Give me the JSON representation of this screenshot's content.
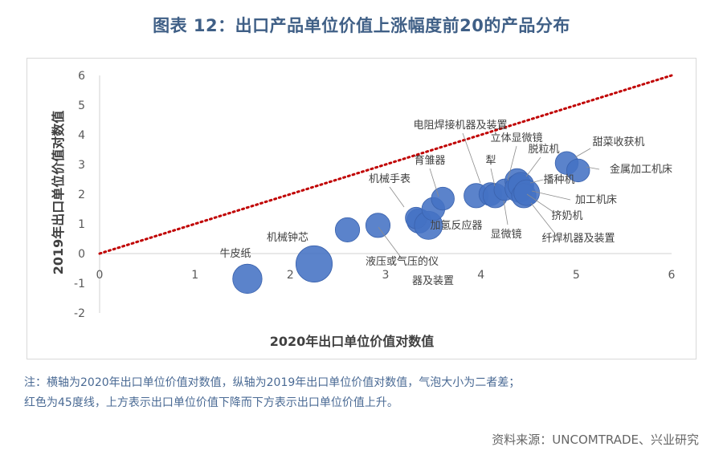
{
  "title": "图表 12：出口产品单位价值上涨幅度前20的产品分布",
  "note_line1": "注：横轴为2020年出口单位价值对数值，纵轴为2019年出口单位价值对数值，气泡大小为二者差；",
  "note_line2": "红色为45度线，上方表示出口单位价值下降而下方表示出口单位价值上升。",
  "source": "资料来源：UNCOMTRADE、兴业研究",
  "chart_data": {
    "type": "bubble",
    "xlabel": "2020年出口单位价值对数值",
    "ylabel": "2019年出口单位价值对数值",
    "xlim": [
      0,
      6
    ],
    "ylim": [
      -2,
      6
    ],
    "xticks": [
      0,
      1,
      2,
      3,
      4,
      5,
      6
    ],
    "yticks": [
      -2,
      -1,
      0,
      1,
      2,
      3,
      4,
      5,
      6
    ],
    "bubble_color": "#4472c4",
    "reference_line": {
      "type": "45-degree",
      "color": "#c00000",
      "style": "dotted"
    },
    "points": [
      {
        "label": "牛皮纸",
        "x": 1.55,
        "y": -0.85,
        "size": 1.3
      },
      {
        "label": "机械钟芯",
        "x": 2.25,
        "y": -0.35,
        "size": 2.0
      },
      {
        "label": "",
        "x": 2.6,
        "y": 0.8,
        "size": 0.9
      },
      {
        "label": "",
        "x": 2.92,
        "y": 0.95,
        "size": 0.9
      },
      {
        "label": "液压或气压的仪器及装置",
        "x": 3.35,
        "y": 1.1,
        "size": 0.9
      },
      {
        "label": "机械手表",
        "x": 3.32,
        "y": 1.2,
        "size": 0.7
      },
      {
        "label": "",
        "x": 3.45,
        "y": 0.95,
        "size": 1.2
      },
      {
        "label": "加氢反应器",
        "x": 3.5,
        "y": 1.5,
        "size": 0.8
      },
      {
        "label": "育雏器",
        "x": 3.6,
        "y": 1.85,
        "size": 0.8
      },
      {
        "label": "电阻焊接机器及装置",
        "x": 3.95,
        "y": 1.95,
        "size": 0.9
      },
      {
        "label": "犁",
        "x": 4.1,
        "y": 2.0,
        "size": 0.8
      },
      {
        "label": "显微镜",
        "x": 4.15,
        "y": 1.95,
        "size": 0.9
      },
      {
        "label": "立体显微镜",
        "x": 4.25,
        "y": 2.15,
        "size": 0.7
      },
      {
        "label": "脱粒机",
        "x": 4.38,
        "y": 2.45,
        "size": 0.9
      },
      {
        "label": "纤焊机器及装置",
        "x": 4.4,
        "y": 2.2,
        "size": 1.2
      },
      {
        "label": "播种机",
        "x": 4.42,
        "y": 2.3,
        "size": 1.0
      },
      {
        "label": "挤奶机",
        "x": 4.45,
        "y": 1.95,
        "size": 0.9
      },
      {
        "label": "加工机床",
        "x": 4.48,
        "y": 2.05,
        "size": 1.0
      },
      {
        "label": "甜菜收获机",
        "x": 4.9,
        "y": 3.05,
        "size": 0.8
      },
      {
        "label": "金属加工机床",
        "x": 5.02,
        "y": 2.8,
        "size": 0.8
      }
    ]
  }
}
